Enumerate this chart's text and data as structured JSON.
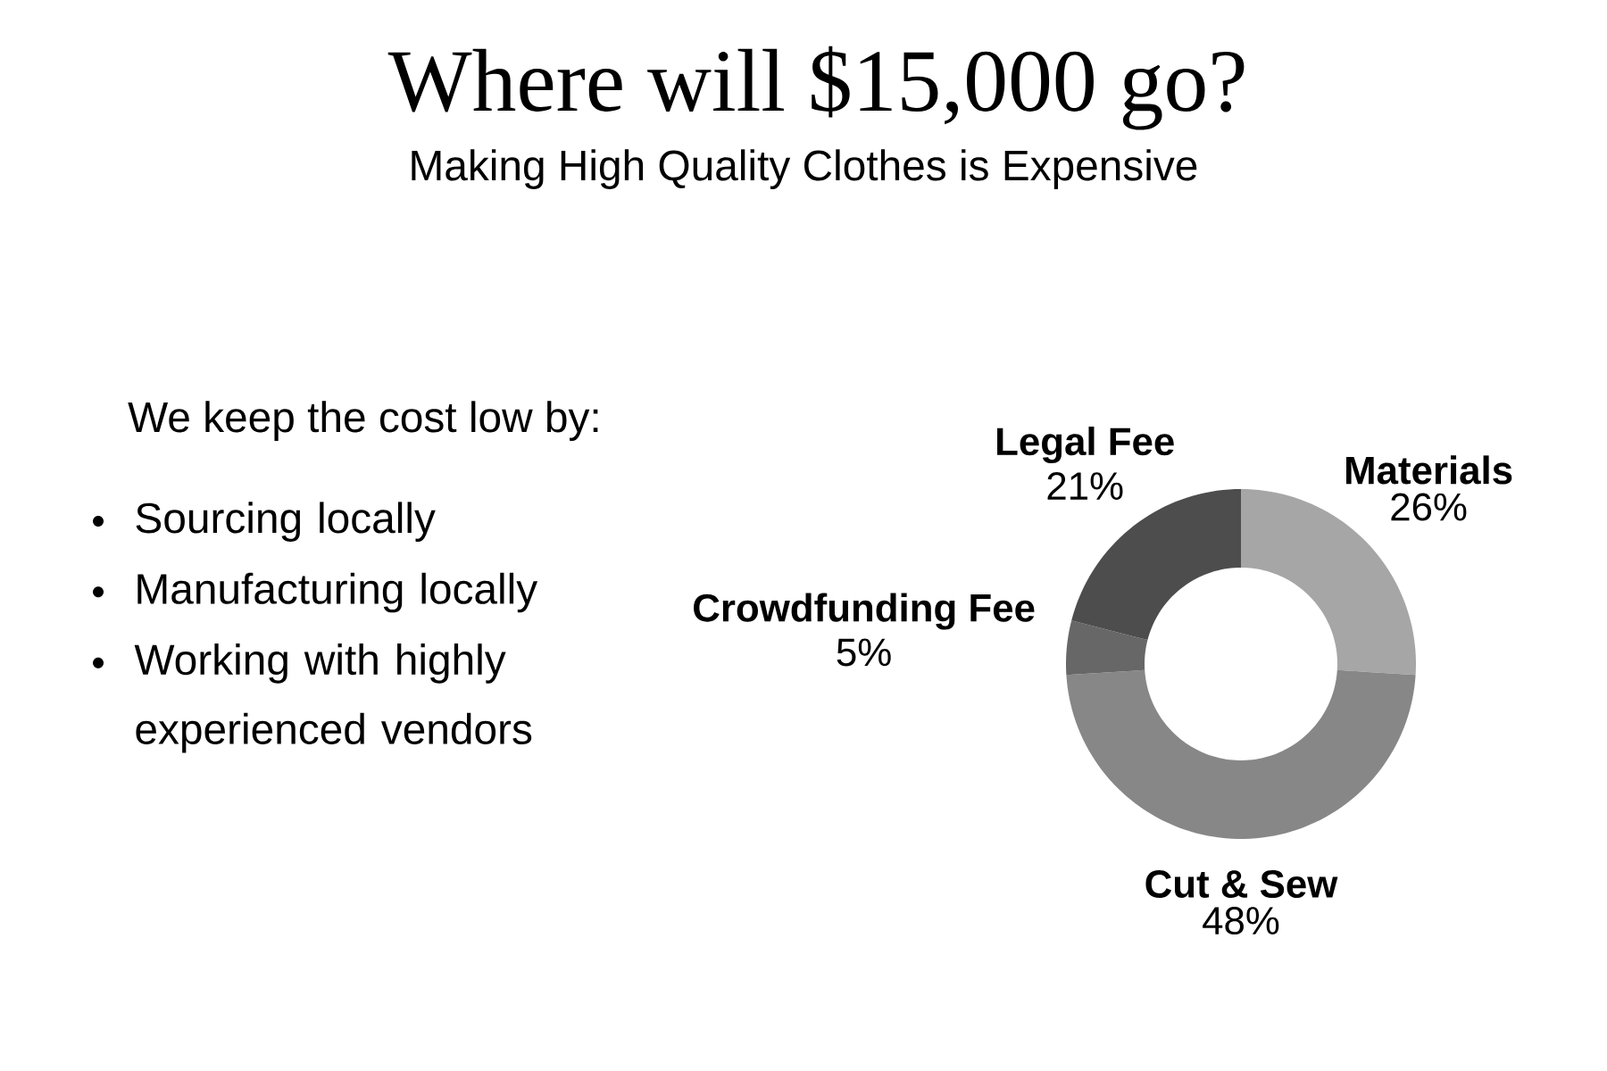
{
  "chart_data": {
    "type": "donut",
    "title": "Where will $15,000 go?",
    "subtitle": "Making High Quality Clothes is Expensive",
    "categories": [
      "Materials",
      "Cut & Sew",
      "Crowdfunding Fee",
      "Legal Fee"
    ],
    "values": [
      26,
      48,
      5,
      21
    ],
    "colors": [
      "#a6a6a6",
      "#878787",
      "#676767",
      "#4d4d4d"
    ],
    "value_labels": [
      "26%",
      "48%",
      "5%",
      "21%"
    ],
    "annotations": [
      "We keep the cost low by:",
      "Sourcing locally",
      "Manufacturing locally",
      "Working with highly experienced vendors"
    ]
  }
}
